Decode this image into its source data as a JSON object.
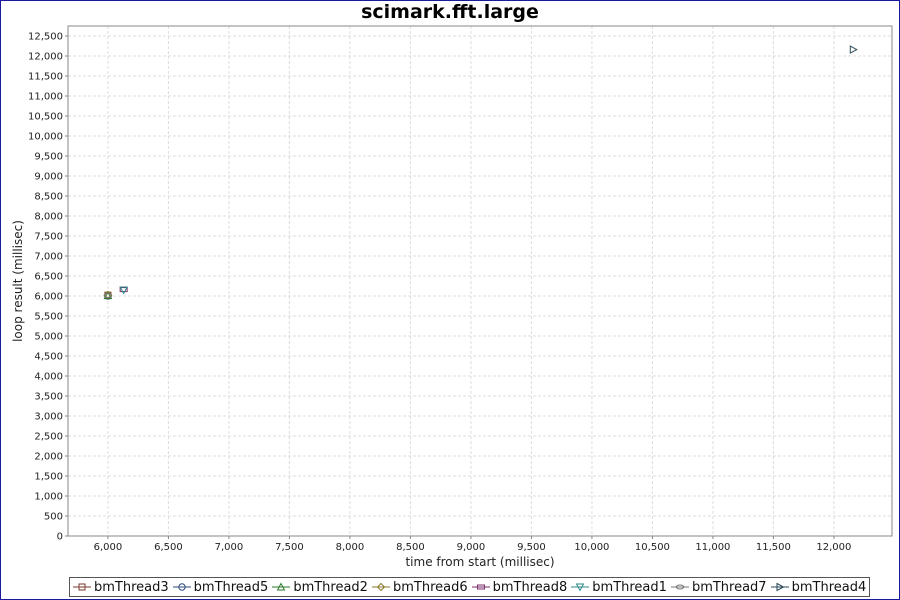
{
  "chart_data": {
    "type": "scatter",
    "title": "scimark.fft.large",
    "xlabel": "time from start (millisec)",
    "ylabel": "loop result (millisec)",
    "xlim": [
      5670,
      12480
    ],
    "ylim": [
      0,
      12750
    ],
    "xticks": [
      "6,000",
      "6,500",
      "7,000",
      "7,500",
      "8,000",
      "8,500",
      "9,000",
      "9,500",
      "10,000",
      "10,500",
      "11,000",
      "11,500",
      "12,000"
    ],
    "yticks": [
      "0",
      "500",
      "1,000",
      "1,500",
      "2,000",
      "2,500",
      "3,000",
      "3,500",
      "4,000",
      "4,500",
      "5,000",
      "5,500",
      "6,000",
      "6,500",
      "7,000",
      "7,500",
      "8,000",
      "8,500",
      "9,000",
      "9,500",
      "10,000",
      "10,500",
      "11,000",
      "11,500",
      "12,000",
      "12,500"
    ],
    "grid": true,
    "legend_position": "bottom",
    "series": [
      {
        "name": "bmThread3",
        "marker": "square",
        "color": "#7a3b2e",
        "points": [
          [
            6000,
            6020
          ]
        ]
      },
      {
        "name": "bmThread5",
        "marker": "circle",
        "color": "#2e4a7a",
        "points": [
          [
            6000,
            6000
          ]
        ]
      },
      {
        "name": "bmThread2",
        "marker": "triangle-up",
        "color": "#2e7a2e",
        "points": [
          [
            6000,
            6010
          ]
        ]
      },
      {
        "name": "bmThread6",
        "marker": "diamond",
        "color": "#8a7a2e",
        "points": [
          [
            6000,
            6030
          ]
        ]
      },
      {
        "name": "bmThread8",
        "marker": "rect-wide",
        "color": "#7a2e6a",
        "points": [
          [
            6130,
            6160
          ]
        ]
      },
      {
        "name": "bmThread1",
        "marker": "triangle-down",
        "color": "#2e8a8a",
        "points": [
          [
            6130,
            6150
          ]
        ]
      },
      {
        "name": "bmThread7",
        "marker": "ellipse",
        "color": "#777777",
        "points": [
          [
            6000,
            6010
          ]
        ]
      },
      {
        "name": "bmThread4",
        "marker": "triangle-right",
        "color": "#2e4a5a",
        "points": [
          [
            12160,
            12160
          ]
        ]
      }
    ]
  }
}
